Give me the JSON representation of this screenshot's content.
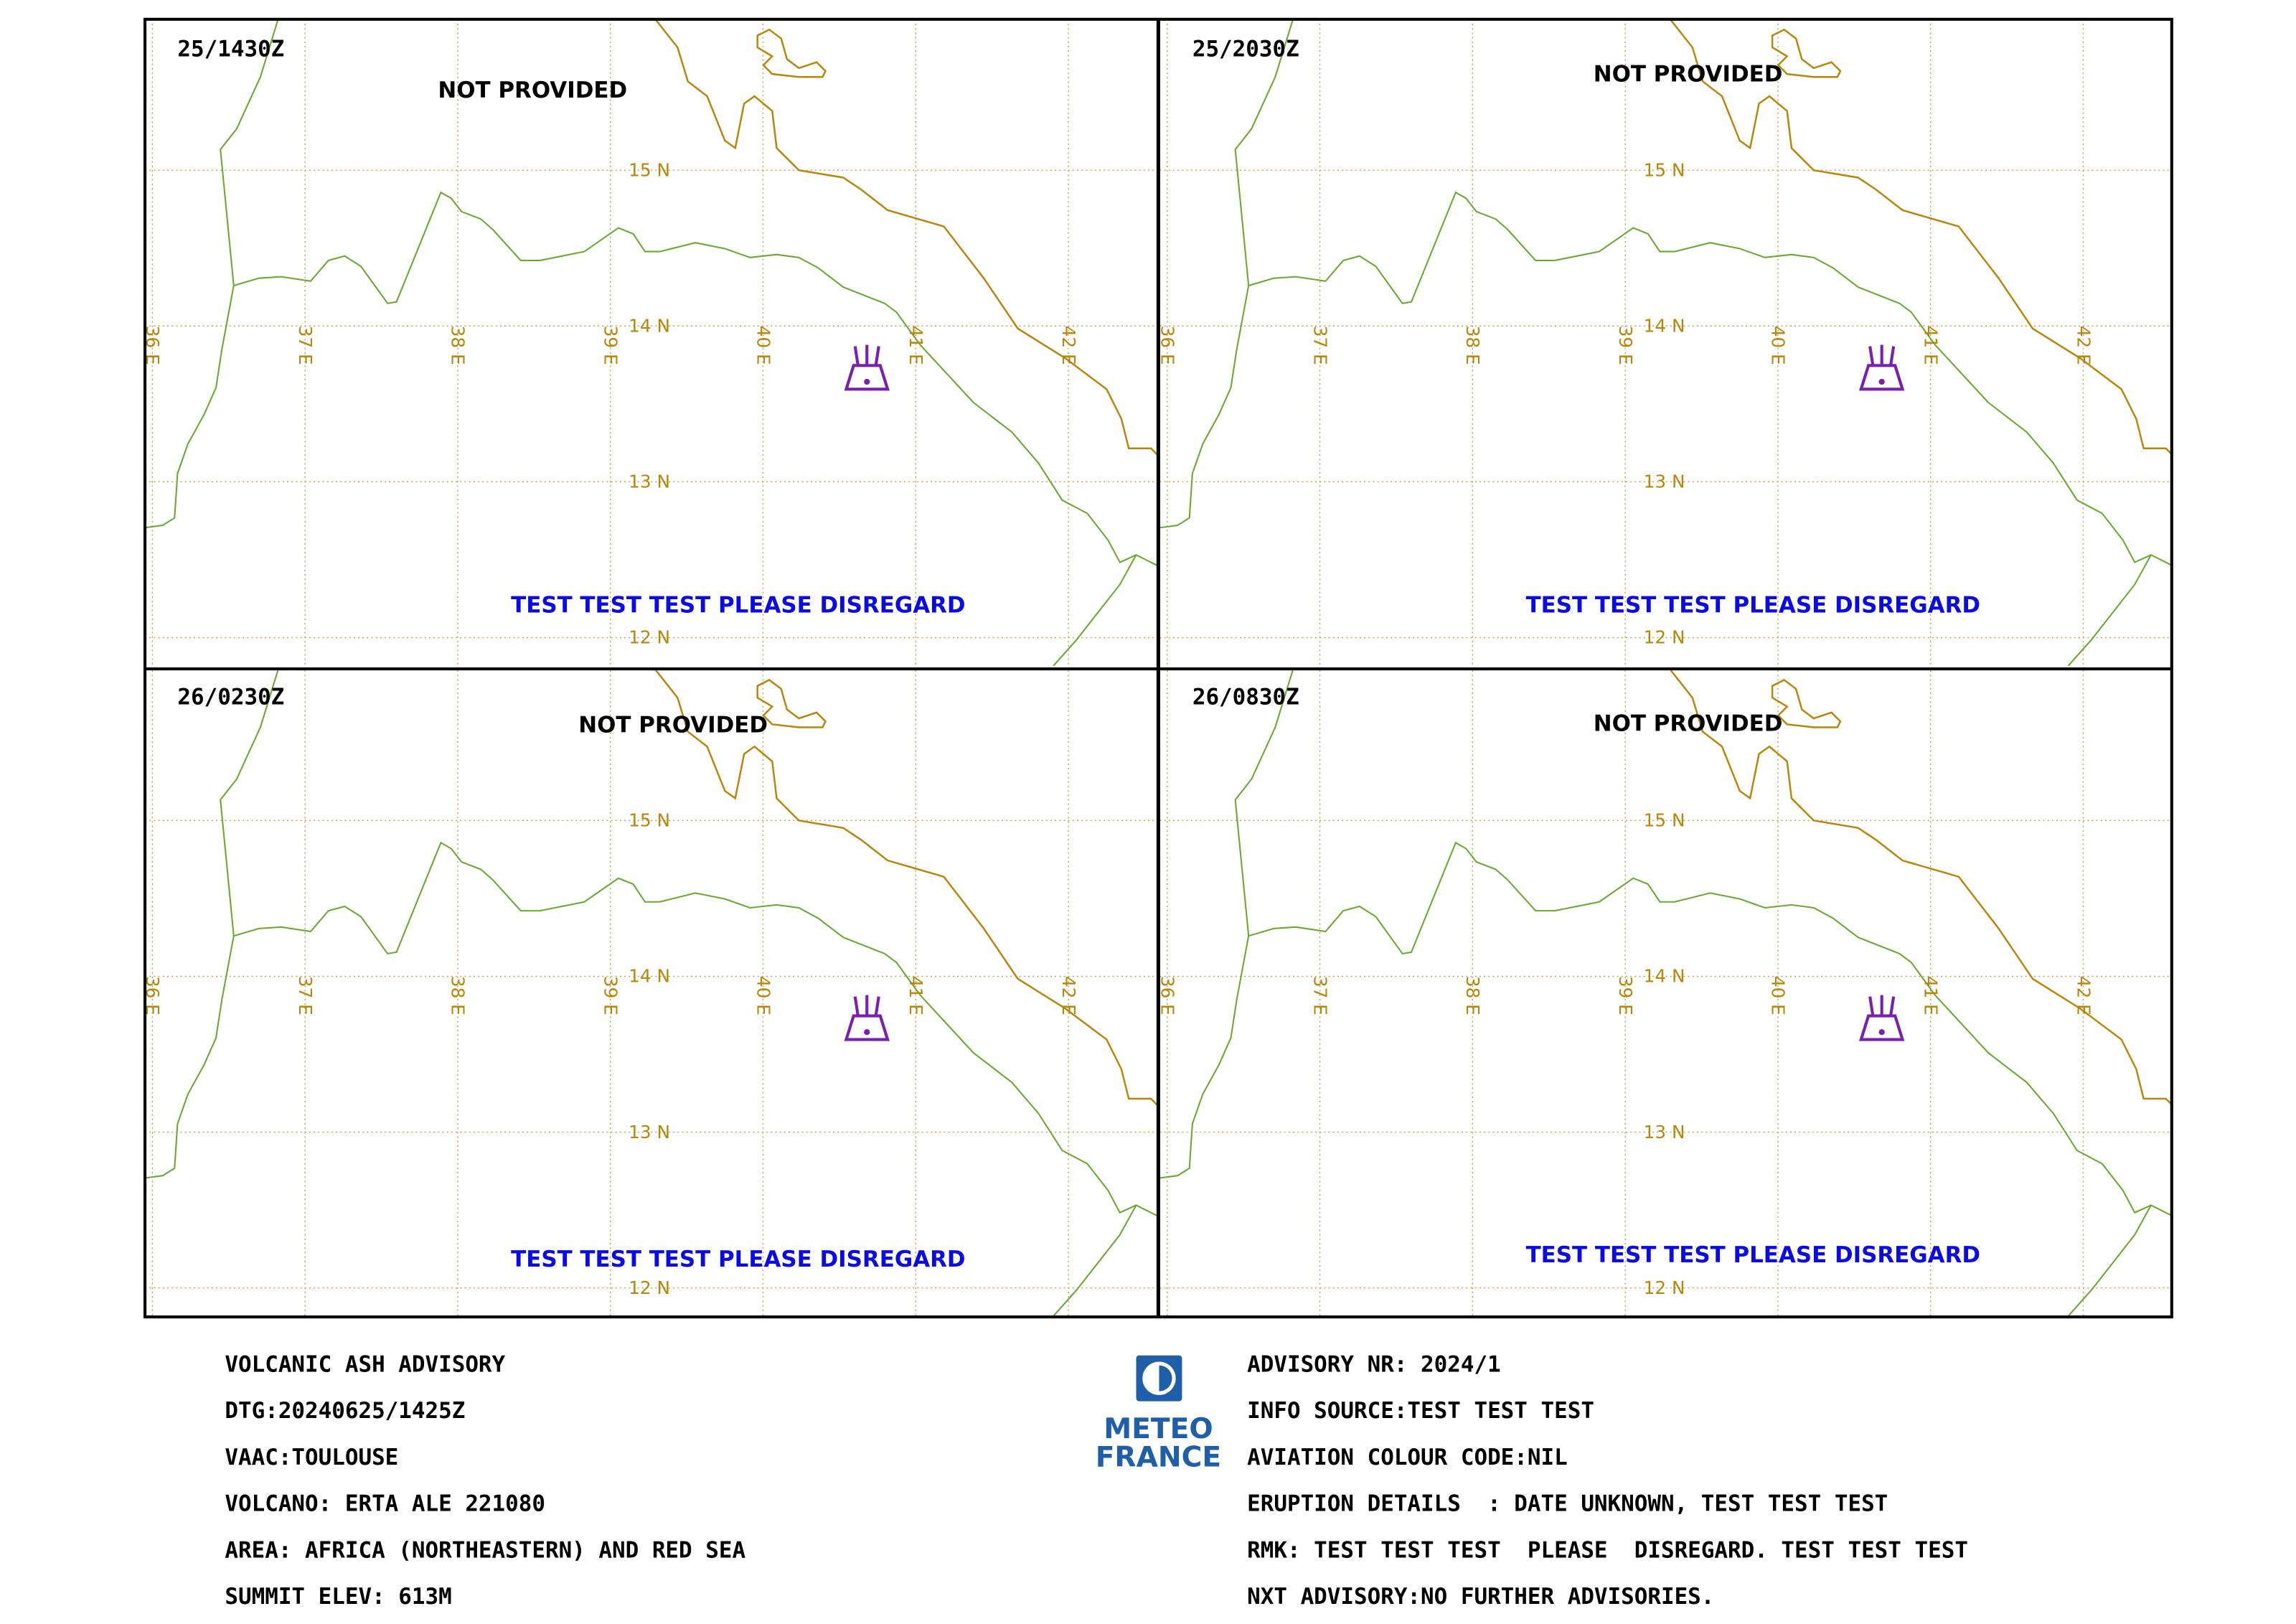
{
  "panels": [
    {
      "time": "25/1430Z",
      "status": "NOT PROVIDED",
      "remark": "TEST TEST TEST PLEASE DISREGARD"
    },
    {
      "time": "25/2030Z",
      "status": "NOT PROVIDED",
      "remark": "TEST TEST TEST PLEASE DISREGARD"
    },
    {
      "time": "26/0230Z",
      "status": "NOT PROVIDED",
      "remark": "TEST TEST TEST PLEASE DISREGARD"
    },
    {
      "time": "26/0830Z",
      "status": "NOT PROVIDED",
      "remark": "TEST TEST TEST PLEASE DISREGARD"
    }
  ],
  "grid": {
    "lat_labels": [
      "15 N",
      "14 N",
      "13 N",
      "12 N"
    ],
    "lon_labels": [
      "36 E",
      "37 E",
      "38 E",
      "39 E",
      "40 E",
      "41 E",
      "42 E"
    ]
  },
  "logo": {
    "line1": "METEO",
    "line2": "FRANCE"
  },
  "advisory": {
    "left": [
      "VOLCANIC ASH ADVISORY",
      "DTG:20240625/1425Z",
      "VAAC:TOULOUSE",
      "VOLCANO: ERTA ALE 221080",
      "AREA: AFRICA (NORTHEASTERN) AND RED SEA",
      "SUMMIT ELEV: 613M"
    ],
    "right": [
      "ADVISORY NR: 2024/1",
      "INFO SOURCE:TEST TEST TEST",
      "AVIATION COLOUR CODE:NIL",
      "ERUPTION DETAILS  : DATE UNKNOWN, TEST TEST TEST",
      "RMK: TEST TEST TEST  PLEASE  DISREGARD. TEST TEST TEST",
      "NXT ADVISORY:NO FURTHER ADVISORIES."
    ]
  }
}
